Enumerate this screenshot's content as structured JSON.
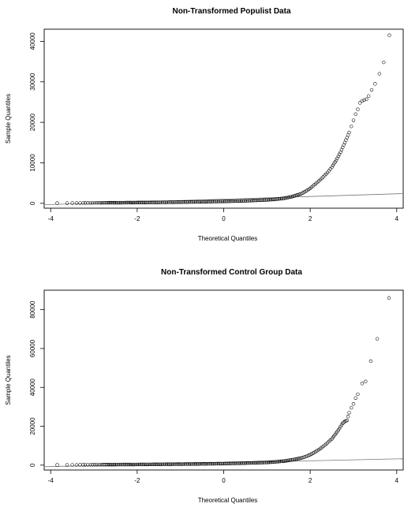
{
  "chart_data": [
    {
      "type": "scatter",
      "title": "Non-Transformed Populist Data",
      "xlabel": "Theoretical Quantiles",
      "ylabel": "Sample Quantiles",
      "xlim": [
        -4.15,
        4.15
      ],
      "ylim": [
        -1200,
        43000
      ],
      "x_ticks": [
        -4,
        -2,
        0,
        2,
        4
      ],
      "y_ticks": [
        0,
        10000,
        20000,
        30000,
        40000
      ],
      "grid": false,
      "reference_line": {
        "x": [
          -4.15,
          4.15
        ],
        "y": [
          -350,
          2400
        ]
      },
      "points": [
        [
          -3.85,
          50
        ],
        [
          -3.62,
          60
        ],
        [
          -3.5,
          70
        ],
        [
          -3.4,
          80
        ],
        [
          -3.32,
          85
        ],
        [
          -3.25,
          90
        ],
        [
          -3.2,
          95
        ],
        [
          -3.14,
          100
        ],
        [
          -3.08,
          105
        ],
        [
          -3.03,
          110
        ],
        [
          -2.98,
          115
        ],
        [
          -2.93,
          120
        ],
        [
          -2.88,
          125
        ],
        [
          -2.84,
          130
        ],
        [
          -2.8,
          135
        ],
        [
          -2.7,
          140
        ],
        [
          -2.5,
          150
        ],
        [
          -2.2,
          170
        ],
        [
          -2.0,
          190
        ],
        [
          -1.5,
          230
        ],
        [
          -1.0,
          300
        ],
        [
          -0.5,
          380
        ],
        [
          0.0,
          480
        ],
        [
          0.5,
          620
        ],
        [
          1.0,
          850
        ],
        [
          1.2,
          1000
        ],
        [
          1.4,
          1250
        ],
        [
          1.6,
          1700
        ],
        [
          1.8,
          2400
        ],
        [
          1.9,
          3000
        ],
        [
          2.0,
          3700
        ],
        [
          2.1,
          4600
        ],
        [
          2.2,
          5500
        ],
        [
          2.3,
          6500
        ],
        [
          2.4,
          7600
        ],
        [
          2.5,
          8900
        ],
        [
          2.55,
          9800
        ],
        [
          2.6,
          10600
        ],
        [
          2.65,
          11600
        ],
        [
          2.7,
          12600
        ],
        [
          2.75,
          13800
        ],
        [
          2.8,
          15000
        ],
        [
          2.85,
          16200
        ],
        [
          2.9,
          17500
        ],
        [
          2.95,
          19000
        ],
        [
          3.0,
          20500
        ],
        [
          3.05,
          22000
        ],
        [
          3.1,
          23200
        ],
        [
          3.15,
          24800
        ],
        [
          3.2,
          25300
        ],
        [
          3.25,
          25500
        ],
        [
          3.3,
          25700
        ],
        [
          3.35,
          26500
        ],
        [
          3.42,
          28000
        ],
        [
          3.5,
          29500
        ],
        [
          3.6,
          32000
        ],
        [
          3.7,
          34800
        ],
        [
          3.83,
          41500
        ]
      ]
    },
    {
      "type": "scatter",
      "title": "Non-Transformed  Control Group Data",
      "xlabel": "Theoretical Quantiles",
      "ylabel": "Sample Quantiles",
      "xlim": [
        -4.15,
        4.15
      ],
      "ylim": [
        -2500,
        90000
      ],
      "x_ticks": [
        -4,
        -2,
        0,
        2,
        4
      ],
      "y_ticks": [
        0,
        20000,
        40000,
        60000,
        80000
      ],
      "grid": false,
      "reference_line": {
        "x": [
          -4.15,
          4.15
        ],
        "y": [
          -800,
          3300
        ]
      },
      "points": [
        [
          -3.85,
          100
        ],
        [
          -3.62,
          120
        ],
        [
          -3.5,
          130
        ],
        [
          -3.4,
          140
        ],
        [
          -3.32,
          150
        ],
        [
          -3.25,
          160
        ],
        [
          -3.2,
          170
        ],
        [
          -3.14,
          180
        ],
        [
          -3.08,
          190
        ],
        [
          -3.03,
          200
        ],
        [
          -2.98,
          210
        ],
        [
          -2.93,
          220
        ],
        [
          -2.88,
          230
        ],
        [
          -2.84,
          240
        ],
        [
          -2.8,
          250
        ],
        [
          -2.7,
          260
        ],
        [
          -2.5,
          280
        ],
        [
          -2.2,
          310
        ],
        [
          -2.0,
          340
        ],
        [
          -1.5,
          420
        ],
        [
          -1.0,
          520
        ],
        [
          -0.5,
          650
        ],
        [
          0.0,
          800
        ],
        [
          0.5,
          1050
        ],
        [
          1.0,
          1400
        ],
        [
          1.2,
          1700
        ],
        [
          1.4,
          2100
        ],
        [
          1.6,
          2800
        ],
        [
          1.8,
          3700
        ],
        [
          1.9,
          4400
        ],
        [
          2.0,
          5400
        ],
        [
          2.1,
          6600
        ],
        [
          2.2,
          8000
        ],
        [
          2.3,
          9600
        ],
        [
          2.4,
          11500
        ],
        [
          2.5,
          13500
        ],
        [
          2.55,
          15000
        ],
        [
          2.6,
          16500
        ],
        [
          2.65,
          18000
        ],
        [
          2.7,
          19800
        ],
        [
          2.75,
          21500
        ],
        [
          2.8,
          22500
        ],
        [
          2.85,
          23000
        ],
        [
          2.9,
          27000
        ],
        [
          2.95,
          29500
        ],
        [
          3.0,
          31500
        ],
        [
          3.05,
          34500
        ],
        [
          3.1,
          36500
        ],
        [
          3.2,
          42000
        ],
        [
          3.28,
          43000
        ],
        [
          3.4,
          53500
        ],
        [
          3.55,
          65000
        ],
        [
          3.82,
          86000
        ]
      ]
    }
  ]
}
